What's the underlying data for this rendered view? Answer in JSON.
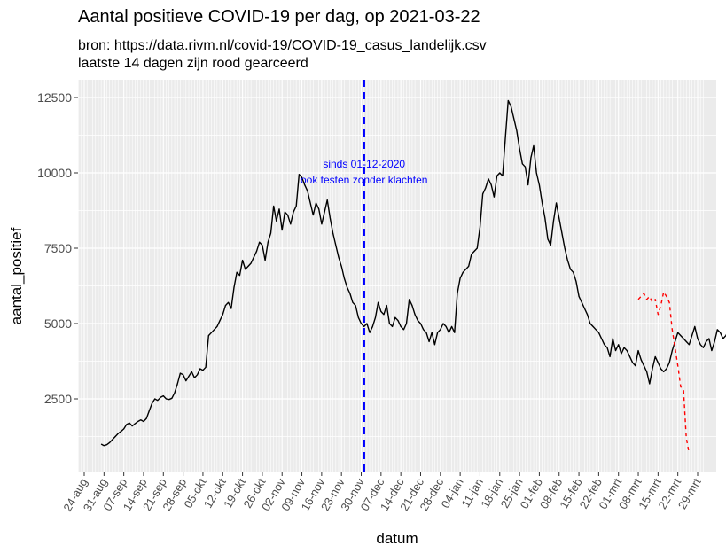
{
  "title": "Aantal positieve COVID-19 per dag, op 2021-03-22",
  "subtitle_lines": [
    "bron: https://data.rivm.nl/covid-19/COVID-19_casus_landelijk.csv",
    "laatste 14 dagen zijn rood gearceerd"
  ],
  "chart_data": {
    "type": "line",
    "title": "Aantal positieve COVID-19 per dag, op 2021-03-22",
    "xlabel": "datum",
    "ylabel": "aantal_positief",
    "x_start_date": "2020-08-24",
    "x_end_date": "2021-03-29",
    "xlim_days": [
      -3,
      219
    ],
    "ylim": [
      0,
      12800
    ],
    "yticks": [
      2500,
      5000,
      7500,
      10000,
      12500
    ],
    "ytick_labels": [
      "2500",
      "5000",
      "7500",
      "10000",
      "12500"
    ],
    "xtick_labels": [
      "24-aug",
      "31-aug",
      "07-sep",
      "14-sep",
      "21-sep",
      "28-sep",
      "05-okt",
      "12-okt",
      "19-okt",
      "26-okt",
      "02-nov",
      "09-nov",
      "16-nov",
      "23-nov",
      "30-nov",
      "07-dec",
      "14-dec",
      "21-dec",
      "28-dec",
      "04-jan",
      "11-jan",
      "18-jan",
      "25-jan",
      "01-feb",
      "08-feb",
      "15-feb",
      "22-feb",
      "01-mrt",
      "08-mrt",
      "15-mrt",
      "22-mrt",
      "29-mrt"
    ],
    "grid": true,
    "background": "#ebebeb",
    "vline": {
      "day": 99,
      "label_date": "01-12-2020",
      "color": "#0000ff",
      "style": "dashed"
    },
    "annotation_lines": [
      "sinds 01-12-2020",
      "ook testen zonder klachten"
    ],
    "series": [
      {
        "name": "aantal_positief",
        "color": "#000000",
        "style": "solid",
        "start_day": 6,
        "values": [
          1000,
          950,
          980,
          1050,
          1150,
          1250,
          1350,
          1420,
          1500,
          1650,
          1700,
          1600,
          1680,
          1750,
          1800,
          1750,
          1850,
          2100,
          2350,
          2500,
          2450,
          2550,
          2600,
          2500,
          2480,
          2520,
          2700,
          3000,
          3350,
          3300,
          3100,
          3250,
          3400,
          3200,
          3300,
          3500,
          3450,
          3550,
          4600,
          4700,
          4800,
          4900,
          5100,
          5300,
          5600,
          5700,
          5500,
          6200,
          6700,
          6600,
          7100,
          6800,
          6900,
          7000,
          7200,
          7400,
          7700,
          7600,
          7100,
          7700,
          8000,
          8900,
          8400,
          8800,
          8100,
          8700,
          8600,
          8300,
          8700,
          8900,
          9950,
          9850,
          9600,
          9400,
          9000,
          8600,
          9000,
          8800,
          8300,
          8700,
          9100,
          8500,
          8000,
          7600,
          7200,
          6900,
          6500,
          6200,
          6000,
          5700,
          5600,
          5200,
          5000,
          4900,
          5000,
          4700,
          4900,
          5200,
          5700,
          5400,
          5300,
          5600,
          5000,
          4900,
          5200,
          5100,
          4900,
          4800,
          5000,
          5800,
          5600,
          5300,
          5100,
          5000,
          4800,
          4700,
          4400,
          4700,
          4300,
          4700,
          4800,
          5000,
          4900,
          4700,
          4900,
          4700,
          6000,
          6500,
          6700,
          6800,
          6900,
          7300,
          7400,
          7500,
          8200,
          9300,
          9500,
          9800,
          9600,
          9200,
          9900,
          10000,
          9900,
          11200,
          12400,
          12200,
          11800,
          11400,
          10800,
          10300,
          10200,
          9600,
          10500,
          10900,
          10000,
          9600,
          9000,
          8500,
          7800,
          7600,
          8400,
          9000,
          8500,
          8000,
          7500,
          7100,
          6800,
          6700,
          6400,
          5900,
          5700,
          5500,
          5300,
          5000,
          4900,
          4800,
          4700,
          4500,
          4300,
          4200,
          3900,
          4500,
          4100,
          4300,
          4000,
          4200,
          4100,
          3900,
          3700,
          3600,
          4100,
          3800,
          3600,
          3400,
          3000,
          3500,
          3900,
          3700,
          3500,
          3400,
          3500,
          3700,
          4100,
          4400,
          4700,
          4600,
          4500,
          4400,
          4300,
          4600,
          4900,
          4500,
          4300,
          4200,
          4400,
          4500,
          4100,
          4400,
          4800,
          4700,
          4500,
          4600,
          4800,
          4700,
          4400,
          4700,
          4800,
          4700,
          5500,
          5700,
          5800
        ]
      },
      {
        "name": "laatste 14 dagen",
        "color": "#ff0000",
        "style": "dashed",
        "start_day": 196,
        "values": [
          5800,
          5900,
          6000,
          5800,
          5900,
          5700,
          5800,
          5300,
          5600,
          6050,
          5900,
          5700,
          4800,
          4200,
          3600,
          2900,
          2800,
          1200,
          700
        ]
      }
    ]
  }
}
